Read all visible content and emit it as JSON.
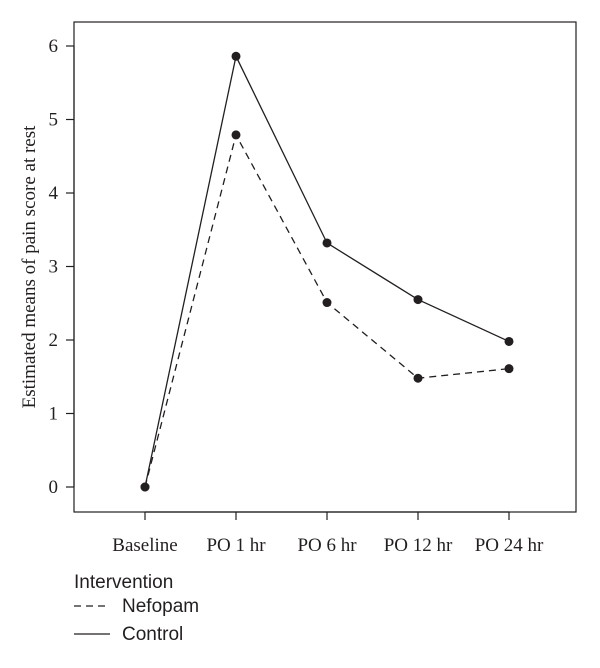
{
  "chart_data": {
    "type": "line",
    "categories": [
      "Baseline",
      "PO 1 hr",
      "PO 6 hr",
      "PO 12 hr",
      "PO 24 hr"
    ],
    "series": [
      {
        "name": "Control",
        "values": [
          0,
          5.86,
          3.32,
          2.55,
          1.98
        ],
        "style": "solid",
        "color": "#231f20"
      },
      {
        "name": "Nefopam",
        "values": [
          0,
          4.79,
          2.51,
          1.48,
          1.61
        ],
        "style": "dashed",
        "color": "#231f20"
      }
    ],
    "ylabel": "Estimated means of pain score at rest",
    "ylim": [
      0,
      6
    ],
    "yticks": [
      0,
      1,
      2,
      3,
      4,
      5,
      6
    ],
    "legend": {
      "title": "Intervention",
      "position": "bottom-left"
    },
    "grid": false
  }
}
